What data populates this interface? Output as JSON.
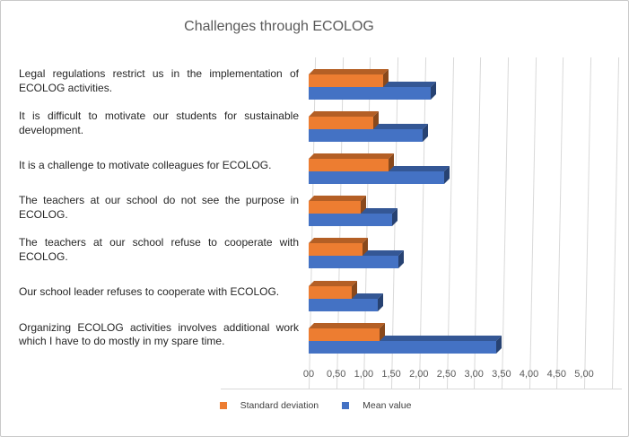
{
  "chart_data": {
    "type": "bar",
    "orientation": "horizontal",
    "style": "3d",
    "title": "Challenges through ECOLOG",
    "categories": [
      "Legal regulations restrict us in the implementation of ECOLOG activities.",
      "It is difficult to motivate our students for sustainable development.",
      "It is a challenge to motivate colleagues for ECOLOG.",
      "The teachers at our school do not see the purpose in ECOLOG.",
      "The teachers at our school refuse to cooperate with ECOLOG.",
      "Our school leader refuses to cooperate with ECOLOG.",
      "Organizing ECOLOG activities involves additional work which I have to do mostly in my spare time."
    ],
    "series": [
      {
        "name": "Standard deviation",
        "color": "#ED7D31",
        "values": [
          1.35,
          1.17,
          1.45,
          0.94,
          0.97,
          0.78,
          1.29
        ]
      },
      {
        "name": "Mean value",
        "color": "#4472C4",
        "values": [
          2.21,
          2.07,
          2.46,
          1.51,
          1.63,
          1.25,
          3.4
        ]
      }
    ],
    "xlim": [
      0,
      5
    ],
    "x_tick_step": 0.5,
    "x_tick_labels": [
      "00",
      "0,50",
      "1,00",
      "1,50",
      "2,00",
      "2,50",
      "3,00",
      "3,50",
      "4,00",
      "4,50",
      "5,00"
    ],
    "grid": true,
    "gridline_color": "#d9d9d9",
    "legend_position": "bottom",
    "title_color": "#595959",
    "axis_text_color": "#595959",
    "category_text_color": "#262626"
  }
}
